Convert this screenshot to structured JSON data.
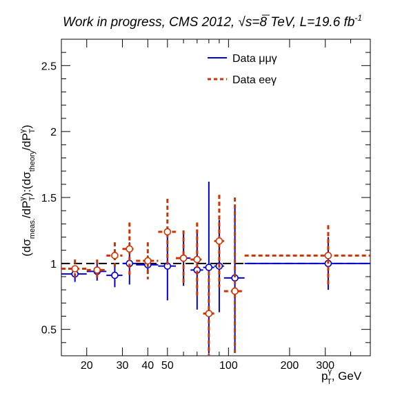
{
  "chart_data": {
    "type": "scatter",
    "title": "Work in progress, CMS 2012, √s=8 TeV, L=19.6 fb⁻¹",
    "title_parts": {
      "pre": "Work in progress, CMS 2012, ",
      "sqrt": "√",
      "mid": "s=8 TeV, L=19.6 fb",
      "sup": "-1"
    },
    "xlabel": "p_T^γ, GeV",
    "xlabel_parts": {
      "main": "p",
      "sup": "γ",
      "sub": "T",
      "rest": ", GeV"
    },
    "ylabel": "(dσ_meas./dP_T^γ):(dσ_theory/dP_T^γ)",
    "ylabel_parts": {
      "open": "(dσ",
      "sub1": "meas.",
      "mid1": "/dP",
      "supA": "γ",
      "subA": "T",
      "mid2": "):(dσ",
      "sub2": "theory",
      "mid3": "/dP",
      "supB": "γ",
      "subB": "T",
      "close": ")"
    },
    "x_scale": "log",
    "xlim": [
      15,
      500
    ],
    "ylim": [
      0.3,
      2.7
    ],
    "x_ticks": [
      20,
      30,
      40,
      50,
      100,
      200,
      300
    ],
    "x_tick_labels": [
      "20",
      "30",
      "40",
      "50",
      "100",
      "200",
      "300"
    ],
    "y_ticks": [
      0.5,
      1,
      1.5,
      2,
      2.5
    ],
    "y_tick_labels": [
      "0.5",
      "1",
      "1.5",
      "2",
      "2.5"
    ],
    "reference_line": 1,
    "legend": {
      "placement": "top-right"
    },
    "series": [
      {
        "name": "Data μμγ",
        "color": "#0000cc",
        "style": "solid",
        "points": [
          {
            "x": 17.5,
            "xlo": 15,
            "xhi": 20,
            "y": 0.92,
            "elo": 0.06,
            "ehi": 0.06
          },
          {
            "x": 22.5,
            "xlo": 20,
            "xhi": 25,
            "y": 0.94,
            "elo": 0.07,
            "ehi": 0.07
          },
          {
            "x": 27.5,
            "xlo": 25,
            "xhi": 30,
            "y": 0.91,
            "elo": 0.09,
            "ehi": 0.09
          },
          {
            "x": 32.5,
            "xlo": 30,
            "xhi": 35,
            "y": 1.0,
            "elo": 0.16,
            "ehi": 0.16
          },
          {
            "x": 40,
            "xlo": 35,
            "xhi": 45,
            "y": 0.99,
            "elo": 0.07,
            "ehi": 0.07
          },
          {
            "x": 50,
            "xlo": 45,
            "xhi": 55,
            "y": 0.98,
            "elo": 0.26,
            "ehi": 0.26
          },
          {
            "x": 60,
            "xlo": 55,
            "xhi": 65,
            "y": 1.04,
            "elo": 0.21,
            "ehi": 0.21
          },
          {
            "x": 70,
            "xlo": 65,
            "xhi": 75,
            "y": 0.95,
            "elo": 0.3,
            "ehi": 0.3
          },
          {
            "x": 80,
            "xlo": 75,
            "xhi": 85,
            "y": 0.97,
            "elo": 0.65,
            "ehi": 0.65
          },
          {
            "x": 90,
            "xlo": 85,
            "xhi": 95,
            "y": 0.98,
            "elo": 0.35,
            "ehi": 0.35
          },
          {
            "x": 107.5,
            "xlo": 95,
            "xhi": 120,
            "y": 0.89,
            "elo": 0.54,
            "ehi": 0.54
          },
          {
            "x": 310,
            "xlo": 120,
            "xhi": 500,
            "y": 1.0,
            "elo": 0.2,
            "ehi": 0.2
          }
        ]
      },
      {
        "name": "Data eeγ",
        "color": "#cc3300",
        "style": "dashed",
        "points": [
          {
            "x": 17.5,
            "xlo": 15,
            "xhi": 20,
            "y": 0.96,
            "elo": 0.07,
            "ehi": 0.07
          },
          {
            "x": 22.5,
            "xlo": 20,
            "xhi": 25,
            "y": 0.95,
            "elo": 0.08,
            "ehi": 0.08
          },
          {
            "x": 27.5,
            "xlo": 25,
            "xhi": 30,
            "y": 1.06,
            "elo": 0.1,
            "ehi": 0.1
          },
          {
            "x": 32.5,
            "xlo": 30,
            "xhi": 35,
            "y": 1.11,
            "elo": 0.2,
            "ehi": 0.2
          },
          {
            "x": 40,
            "xlo": 35,
            "xhi": 45,
            "y": 1.02,
            "elo": 0.14,
            "ehi": 0.14
          },
          {
            "x": 50,
            "xlo": 45,
            "xhi": 55,
            "y": 1.24,
            "elo": 0.25,
            "ehi": 0.25
          },
          {
            "x": 60,
            "xlo": 55,
            "xhi": 65,
            "y": 1.04,
            "elo": 0.21,
            "ehi": 0.21
          },
          {
            "x": 70,
            "xlo": 65,
            "xhi": 75,
            "y": 1.03,
            "elo": 0.28,
            "ehi": 0.28
          },
          {
            "x": 80,
            "xlo": 75,
            "xhi": 85,
            "y": 0.62,
            "elo": 0.32,
            "ehi": 0.32
          },
          {
            "x": 90,
            "xlo": 85,
            "xhi": 95,
            "y": 1.17,
            "elo": 0.35,
            "ehi": 0.35
          },
          {
            "x": 107.5,
            "xlo": 95,
            "xhi": 120,
            "y": 0.79,
            "elo": 0.71,
            "ehi": 0.71
          },
          {
            "x": 310,
            "xlo": 120,
            "xhi": 500,
            "y": 1.06,
            "elo": 0.23,
            "ehi": 0.23
          }
        ]
      }
    ]
  }
}
